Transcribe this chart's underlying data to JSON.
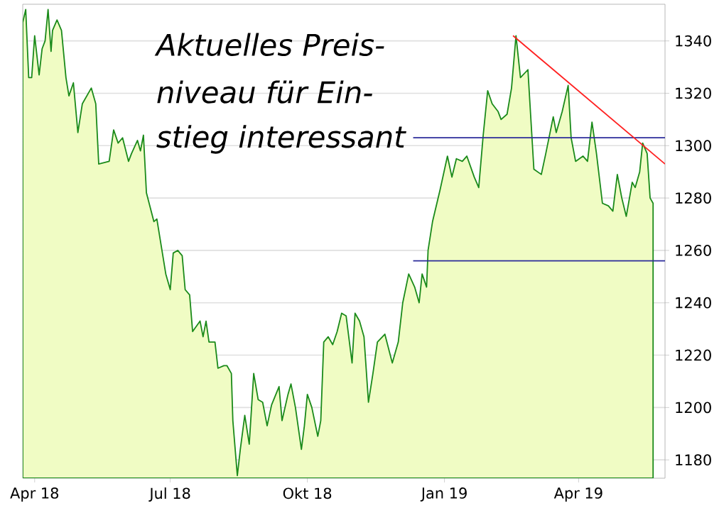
{
  "chart_data": {
    "type": "area",
    "annotations": [
      "Aktuelles Preis-",
      "niveau für Ein-",
      "stieg interessant"
    ],
    "xlim": [
      "2018-03-24",
      "2019-05-29"
    ],
    "ylim": [
      1173,
      1354
    ],
    "xticks": [
      {
        "value": "2018-04-01",
        "label": "Apr 18"
      },
      {
        "value": "2018-07-01",
        "label": "Jul 18"
      },
      {
        "value": "2018-10-01",
        "label": "Okt 18"
      },
      {
        "value": "2019-01-01",
        "label": "Jan 19"
      },
      {
        "value": "2019-04-01",
        "label": "Apr 19"
      }
    ],
    "yticks": [
      1180,
      1200,
      1220,
      1240,
      1260,
      1280,
      1300,
      1320,
      1340
    ],
    "grid": "y",
    "series": [
      {
        "color": "#f0fcc4",
        "x": [
          "2018-03-24",
          "2018-03-26",
          "2018-03-28",
          "2018-03-30",
          "2018-04-01",
          "2018-04-04",
          "2018-04-06",
          "2018-04-08",
          "2018-04-10",
          "2018-04-12",
          "2018-04-13",
          "2018-04-16",
          "2018-04-19",
          "2018-04-22",
          "2018-04-24",
          "2018-04-27",
          "2018-04-30",
          "2018-05-03",
          "2018-05-09",
          "2018-05-12",
          "2018-05-14",
          "2018-05-21",
          "2018-05-24",
          "2018-05-27",
          "2018-05-30",
          "2018-06-03",
          "2018-06-05",
          "2018-06-09",
          "2018-06-11",
          "2018-06-13",
          "2018-06-15",
          "2018-06-20",
          "2018-06-22",
          "2018-06-26",
          "2018-06-28",
          "2018-07-01",
          "2018-07-03",
          "2018-07-06",
          "2018-07-09",
          "2018-07-11",
          "2018-07-14",
          "2018-07-16",
          "2018-07-21",
          "2018-07-23",
          "2018-07-25",
          "2018-07-27",
          "2018-07-31",
          "2018-08-02",
          "2018-08-06",
          "2018-08-08",
          "2018-08-11",
          "2018-08-12",
          "2018-08-15",
          "2018-08-17",
          "2018-08-20",
          "2018-08-23",
          "2018-08-26",
          "2018-08-29",
          "2018-09-01",
          "2018-09-04",
          "2018-09-07",
          "2018-09-12",
          "2018-09-14",
          "2018-09-18",
          "2018-09-20",
          "2018-09-23",
          "2018-09-27",
          "2018-09-29",
          "2018-10-01",
          "2018-10-04",
          "2018-10-08",
          "2018-10-10",
          "2018-10-12",
          "2018-10-15",
          "2018-10-18",
          "2018-10-21",
          "2018-10-24",
          "2018-10-27",
          "2018-10-31",
          "2018-11-02",
          "2018-11-05",
          "2018-11-08",
          "2018-11-11",
          "2018-11-14",
          "2018-11-17",
          "2018-11-22",
          "2018-11-27",
          "2018-12-01",
          "2018-12-04",
          "2018-12-08",
          "2018-12-12",
          "2018-12-15",
          "2018-12-17",
          "2018-12-20",
          "2018-12-21",
          "2018-12-24",
          "2018-12-29",
          "2019-01-03",
          "2019-01-06",
          "2019-01-09",
          "2019-01-13",
          "2019-01-16",
          "2019-01-21",
          "2019-01-24",
          "2019-01-27",
          "2019-01-30",
          "2019-02-02",
          "2019-02-06",
          "2019-02-08",
          "2019-02-12",
          "2019-02-15",
          "2019-02-18",
          "2019-02-21",
          "2019-02-26",
          "2019-03-02",
          "2019-03-07",
          "2019-03-10",
          "2019-03-15",
          "2019-03-17",
          "2019-03-21",
          "2019-03-25",
          "2019-03-27",
          "2019-03-30",
          "2019-04-04",
          "2019-04-07",
          "2019-04-10",
          "2019-04-13",
          "2019-04-17",
          "2019-04-21",
          "2019-04-24",
          "2019-04-27",
          "2019-04-30",
          "2019-05-03",
          "2019-05-07",
          "2019-05-09",
          "2019-05-12",
          "2019-05-14",
          "2019-05-17",
          "2019-05-19",
          "2019-05-21"
        ],
        "values": [
          1347,
          1352,
          1326,
          1326,
          1342,
          1327,
          1337,
          1340,
          1352,
          1336,
          1344,
          1348,
          1344,
          1326,
          1319,
          1324,
          1305,
          1316,
          1322,
          1316,
          1293,
          1294,
          1306,
          1301,
          1303,
          1294,
          1297,
          1302,
          1298,
          1304,
          1282,
          1271,
          1272,
          1258,
          1251,
          1245,
          1259,
          1260,
          1258,
          1245,
          1243,
          1229,
          1233,
          1227,
          1233,
          1225,
          1225,
          1215,
          1216,
          1216,
          1213,
          1195,
          1174,
          1184,
          1197,
          1186,
          1213,
          1203,
          1202,
          1193,
          1201,
          1208,
          1195,
          1205,
          1209,
          1200,
          1184,
          1193,
          1205,
          1200,
          1189,
          1195,
          1225,
          1227,
          1224,
          1229,
          1236,
          1235,
          1217,
          1236,
          1233,
          1227,
          1202,
          1213,
          1225,
          1228,
          1217,
          1225,
          1240,
          1251,
          1246,
          1240,
          1251,
          1246,
          1260,
          1271,
          1283,
          1296,
          1288,
          1295,
          1294,
          1296,
          1288,
          1284,
          1304,
          1321,
          1316,
          1313,
          1310,
          1312,
          1322,
          1342,
          1326,
          1329,
          1291,
          1289,
          1297,
          1311,
          1305,
          1313,
          1323,
          1303,
          1294,
          1296,
          1294,
          1309,
          1297,
          1278,
          1277,
          1275,
          1289,
          1280,
          1273,
          1286,
          1284,
          1290,
          1301,
          1297,
          1280,
          1278
        ]
      },
      {
        "type": "line",
        "color": "#2b2b9a",
        "x": [
          "2018-12-11",
          "2019-05-29"
        ],
        "values": [
          1303,
          1303
        ]
      },
      {
        "type": "line",
        "color": "#2b2b9a",
        "x": [
          "2018-12-11",
          "2019-05-29"
        ],
        "values": [
          1256,
          1256
        ]
      },
      {
        "type": "line",
        "color": "#ff2020",
        "x": [
          "2019-02-16",
          "2019-05-29"
        ],
        "values": [
          1342,
          1293
        ]
      }
    ]
  }
}
